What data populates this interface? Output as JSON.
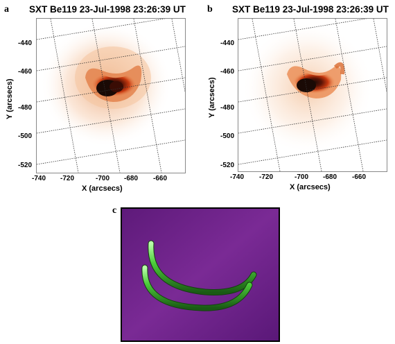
{
  "panel_a": {
    "letter": "a",
    "title": "SXT Be119 23-Jul-1998 23:26:39 UT",
    "y_label": "Y (arcsecs)",
    "x_label": "X (arcsecs)",
    "y_ticks": [
      "-440",
      "-460",
      "-480",
      "-500",
      "-520"
    ],
    "x_ticks": [
      "-740",
      "-720",
      "-700",
      "-680",
      "-660"
    ]
  },
  "panel_b": {
    "letter": "b",
    "title": "SXT Be119 23-Jul-1998 23:26:39 UT",
    "y_label": "Y (arcsecs)",
    "x_label": "X (arcsecs)",
    "y_ticks": [
      "-440",
      "-460",
      "-480",
      "-500",
      "-520"
    ],
    "x_ticks": [
      "-740",
      "-720",
      "-700",
      "-680",
      "-660"
    ]
  },
  "panel_c": {
    "letter": "c"
  },
  "colors": {
    "background_purple": "#6a1e86",
    "loop_green": "#4ccc3a",
    "emission_core": "#1a0a05"
  }
}
